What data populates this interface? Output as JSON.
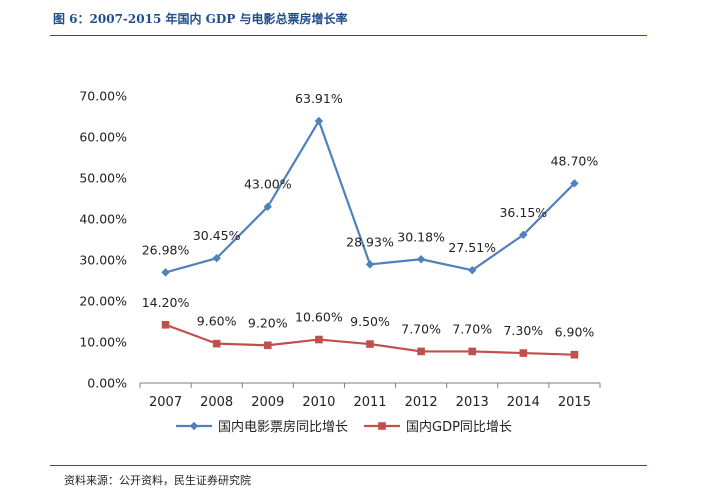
{
  "figure": {
    "title": "图 6：2007-2015 年国内 GDP 与电影总票房增长率",
    "source": "资料来源：公开资料，民生证券研究院"
  },
  "chart_data": {
    "type": "line",
    "categories": [
      "2007",
      "2008",
      "2009",
      "2010",
      "2011",
      "2012",
      "2013",
      "2014",
      "2015"
    ],
    "series": [
      {
        "name": "国内电影票房同比增长",
        "values": [
          26.98,
          30.45,
          43.0,
          63.91,
          28.93,
          30.18,
          27.51,
          36.15,
          48.7
        ],
        "labels": [
          "26.98%",
          "30.45%",
          "43.00%",
          "63.91%",
          "28.93%",
          "30.18%",
          "27.51%",
          "36.15%",
          "48.70%"
        ],
        "color": "#4f81bd",
        "marker": "diamond"
      },
      {
        "name": "国内GDP同比增长",
        "values": [
          14.2,
          9.6,
          9.2,
          10.6,
          9.5,
          7.7,
          7.7,
          7.3,
          6.9
        ],
        "labels": [
          "14.20%",
          "9.60%",
          "9.20%",
          "10.60%",
          "9.50%",
          "7.70%",
          "7.70%",
          "7.30%",
          "6.90%"
        ],
        "color": "#c0504d",
        "marker": "square"
      }
    ],
    "yticks": [
      "0.00%",
      "10.00%",
      "20.00%",
      "30.00%",
      "40.00%",
      "50.00%",
      "60.00%",
      "70.00%"
    ],
    "ylim": [
      0,
      70
    ],
    "grid": false,
    "legend": "bottom"
  }
}
